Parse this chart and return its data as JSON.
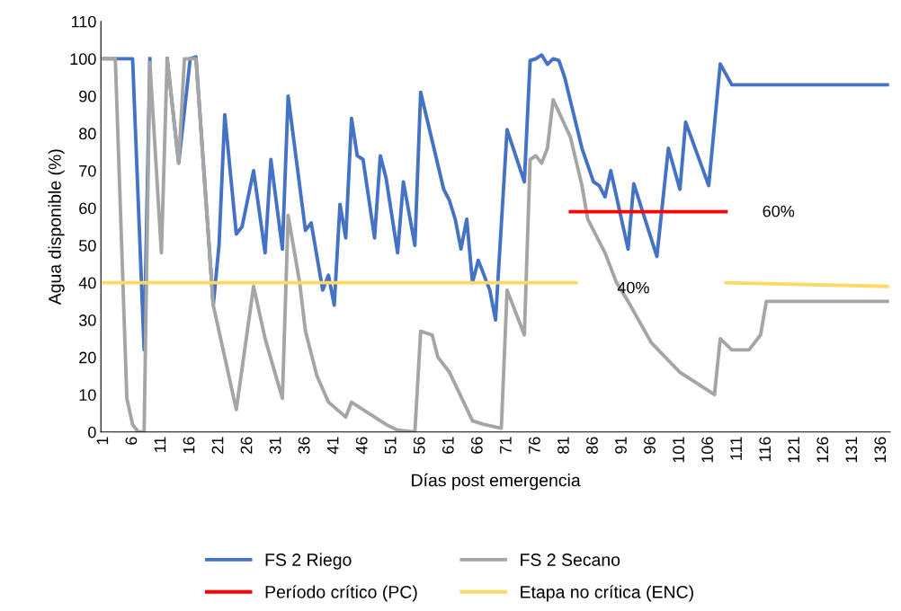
{
  "chart_data": {
    "type": "line",
    "xlabel": "Días post emergencia",
    "ylabel": "Agua disponible (%)",
    "xlim": [
      0.5,
      137.5
    ],
    "xticks": [
      1,
      6,
      11,
      16,
      21,
      26,
      31,
      36,
      41,
      46,
      51,
      56,
      61,
      66,
      71,
      76,
      81,
      86,
      91,
      96,
      101,
      106,
      111,
      116,
      121,
      126,
      131,
      136
    ],
    "ylim": [
      0,
      110
    ],
    "yticks": [
      0,
      10,
      20,
      30,
      40,
      50,
      60,
      70,
      80,
      90,
      100,
      110
    ],
    "grid": false,
    "legend": "bottom",
    "marker": "none",
    "line_style": "solid",
    "series": [
      {
        "name": "FS 2 Riego",
        "color": "#4472c4",
        "x": [
          1,
          3,
          5,
          6,
          8,
          9,
          11,
          12,
          14,
          16,
          17,
          20,
          21,
          22,
          24,
          25,
          27,
          29,
          30,
          32,
          33,
          36,
          37,
          39,
          40,
          41,
          42,
          43,
          44,
          45,
          46,
          48,
          49,
          50,
          52,
          53,
          55,
          56,
          58,
          60,
          61,
          62,
          63,
          64,
          65,
          66,
          68,
          69,
          71,
          74,
          75,
          76,
          77,
          78,
          79,
          80,
          81,
          84,
          86,
          87,
          88,
          89,
          92,
          93,
          97,
          99,
          101,
          102,
          106,
          108,
          110,
          137
        ],
        "values": [
          100,
          100,
          100,
          100,
          22,
          100,
          null,
          100,
          72,
          100,
          100.5,
          34,
          50,
          85,
          53,
          55,
          70,
          48,
          73,
          49,
          90,
          54,
          56,
          38,
          42,
          34,
          61,
          52,
          84,
          74,
          73,
          52,
          74,
          68,
          48,
          67,
          50,
          91,
          78,
          65,
          62,
          57,
          49,
          57,
          40,
          46,
          38,
          30,
          81,
          67,
          99.5,
          100,
          101,
          98.5,
          100,
          99.5,
          95,
          76,
          67,
          66,
          63,
          70,
          49,
          66.5,
          47,
          76,
          65,
          83,
          66,
          98.6,
          93,
          93
        ]
      },
      {
        "name": "FS 2 Secano",
        "color": "#a5a5a5",
        "x": [
          1,
          3,
          5,
          6,
          7,
          8,
          9,
          11,
          12,
          14,
          15,
          17,
          20,
          22,
          24,
          25,
          27,
          29,
          32,
          33,
          35,
          36,
          38,
          40,
          43,
          44,
          46,
          50,
          52,
          55,
          56,
          58,
          59,
          61,
          65,
          67,
          70,
          71,
          74,
          75,
          76,
          77,
          78,
          79,
          82,
          84,
          85,
          88,
          90,
          92,
          96,
          101,
          107,
          108,
          110,
          113,
          115,
          116,
          137
        ],
        "values": [
          100,
          100,
          9,
          2,
          0,
          0,
          99,
          48,
          100,
          72,
          100,
          100,
          34,
          20,
          6,
          17,
          39,
          25,
          9,
          58,
          40,
          27,
          15,
          8,
          4,
          8,
          6,
          2,
          0.5,
          0,
          27,
          26,
          20,
          16,
          3,
          2,
          1,
          38,
          26,
          73,
          74,
          72,
          76,
          89,
          79,
          66,
          57,
          48,
          40,
          35,
          24,
          16,
          10,
          25,
          22,
          22,
          26,
          35,
          35
        ]
      },
      {
        "name": "Período crítico (PC)",
        "color": "#ff0000",
        "x": [
          82,
          109
        ],
        "values": [
          59,
          59
        ]
      },
      {
        "name": "Etapa no crítica (ENC)",
        "color": "#ffd966",
        "x": [
          1,
          83,
          96,
          109,
          137
        ],
        "values": [
          40,
          40,
          null,
          40,
          39
        ]
      }
    ],
    "annotations": [
      "60%",
      "40%"
    ]
  }
}
